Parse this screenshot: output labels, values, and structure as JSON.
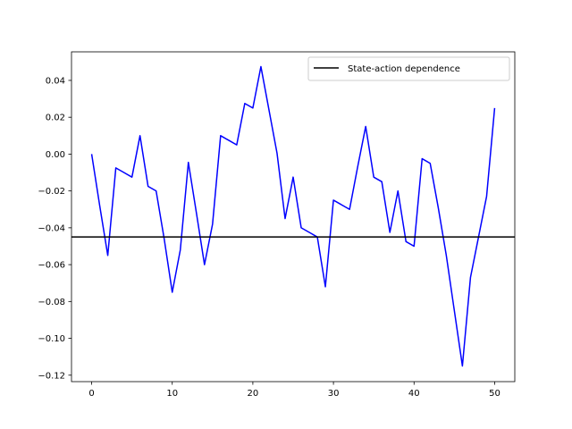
{
  "chart_data": {
    "type": "line",
    "title": "",
    "xlabel": "",
    "ylabel": "",
    "xlim": [
      -2.5,
      52.5
    ],
    "ylim": [
      -0.1235,
      0.0555
    ],
    "xticks": [
      0,
      10,
      20,
      30,
      40,
      50
    ],
    "yticks": [
      -0.12,
      -0.1,
      -0.08,
      -0.06,
      -0.04,
      -0.02,
      0.0,
      0.02,
      0.04
    ],
    "xtick_labels": [
      "0",
      "10",
      "20",
      "30",
      "40",
      "50"
    ],
    "ytick_labels": [
      "−0.12",
      "−0.10",
      "−0.08",
      "−0.06",
      "−0.04",
      "−0.02",
      "0.00",
      "0.02",
      "0.04"
    ],
    "grid": false,
    "legend_position": "top-right",
    "series": [
      {
        "color": "#0000ff",
        "x": [
          0,
          1,
          2,
          3,
          4,
          5,
          6,
          7,
          8,
          9,
          10,
          11,
          12,
          13,
          14,
          15,
          16,
          17,
          18,
          19,
          20,
          21,
          22,
          23,
          24,
          25,
          26,
          27,
          28,
          29,
          30,
          31,
          32,
          33,
          34,
          35,
          36,
          37,
          38,
          39,
          40,
          41,
          42,
          43,
          44,
          45,
          46,
          47,
          48,
          49,
          50
        ],
        "values": [
          0.0,
          -0.028,
          -0.055,
          -0.0075,
          -0.01,
          -0.0125,
          0.01,
          -0.0175,
          -0.02,
          -0.046,
          -0.075,
          -0.052,
          -0.0045,
          -0.032,
          -0.06,
          -0.038,
          0.01,
          0.0075,
          0.005,
          0.0275,
          0.025,
          0.0475,
          0.024,
          0.0005,
          -0.035,
          -0.0125,
          -0.04,
          -0.0425,
          -0.045,
          -0.072,
          -0.025,
          -0.0275,
          -0.03,
          -0.007,
          0.015,
          -0.0125,
          -0.015,
          -0.0425,
          -0.02,
          -0.0475,
          -0.05,
          -0.0025,
          -0.005,
          -0.029,
          -0.055,
          -0.085,
          -0.115,
          -0.067,
          -0.045,
          -0.023,
          0.025
        ]
      },
      {
        "name": "State-action dependence",
        "color": "#000000",
        "type": "hline",
        "y": -0.045
      }
    ]
  }
}
